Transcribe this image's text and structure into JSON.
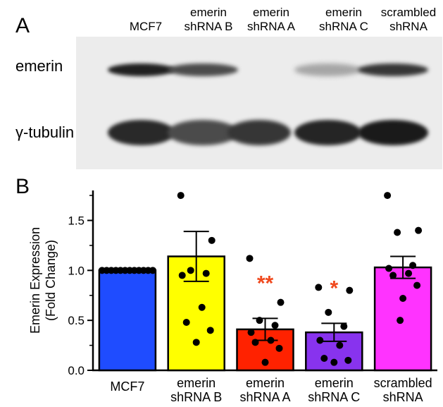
{
  "panel_a": {
    "label": "A",
    "columns": [
      "MCF7",
      "emerin\nshRNA B",
      "emerin\nshRNA A",
      "emerin\nshRNA C",
      "scrambled\nshRNA"
    ],
    "rows": [
      "emerin",
      "γ-tubulin"
    ],
    "band_intensity": {
      "emerin": [
        0.92,
        0.72,
        0.0,
        0.3,
        0.82
      ],
      "tubulin": [
        0.88,
        0.72,
        0.82,
        0.9,
        0.95
      ]
    }
  },
  "chart_data": {
    "type": "bar",
    "panel_label": "B",
    "title": "",
    "xlabel": "",
    "ylabel": "Emerin Expression (Fold Change)",
    "ylim": [
      0,
      1.8
    ],
    "yticks": [
      "0.0",
      "0.5",
      "1.0",
      "1.5"
    ],
    "categories": [
      "MCF7",
      "emerin\nshRNA B",
      "emerin\nshRNA A",
      "emerin\nshRNA C",
      "scrambled\nshRNA"
    ],
    "values": [
      1.0,
      1.14,
      0.41,
      0.38,
      1.03
    ],
    "error": [
      0.0,
      0.25,
      0.11,
      0.09,
      0.11
    ],
    "significance": [
      "",
      "",
      "**",
      "*",
      ""
    ],
    "colors": [
      "#1f4cff",
      "#ffff00",
      "#ff2200",
      "#8833ee",
      "#ff33ff"
    ],
    "significance_color": "#f04a1f",
    "points": [
      [
        1.0,
        1.0,
        1.0,
        1.0,
        1.0,
        1.0,
        1.0,
        1.0,
        1.0,
        1.0,
        1.0,
        1.0
      ],
      [
        1.75,
        1.3,
        1.0,
        0.97,
        0.95,
        0.63,
        0.48,
        0.4,
        0.28
      ],
      [
        1.12,
        0.68,
        0.5,
        0.45,
        0.38,
        0.3,
        0.28,
        0.22,
        0.08
      ],
      [
        0.83,
        0.8,
        0.58,
        0.44,
        0.3,
        0.25,
        0.12,
        0.1,
        0.08
      ],
      [
        1.75,
        1.4,
        1.38,
        1.05,
        1.02,
        0.97,
        0.95,
        0.85,
        0.72,
        0.5
      ]
    ]
  }
}
